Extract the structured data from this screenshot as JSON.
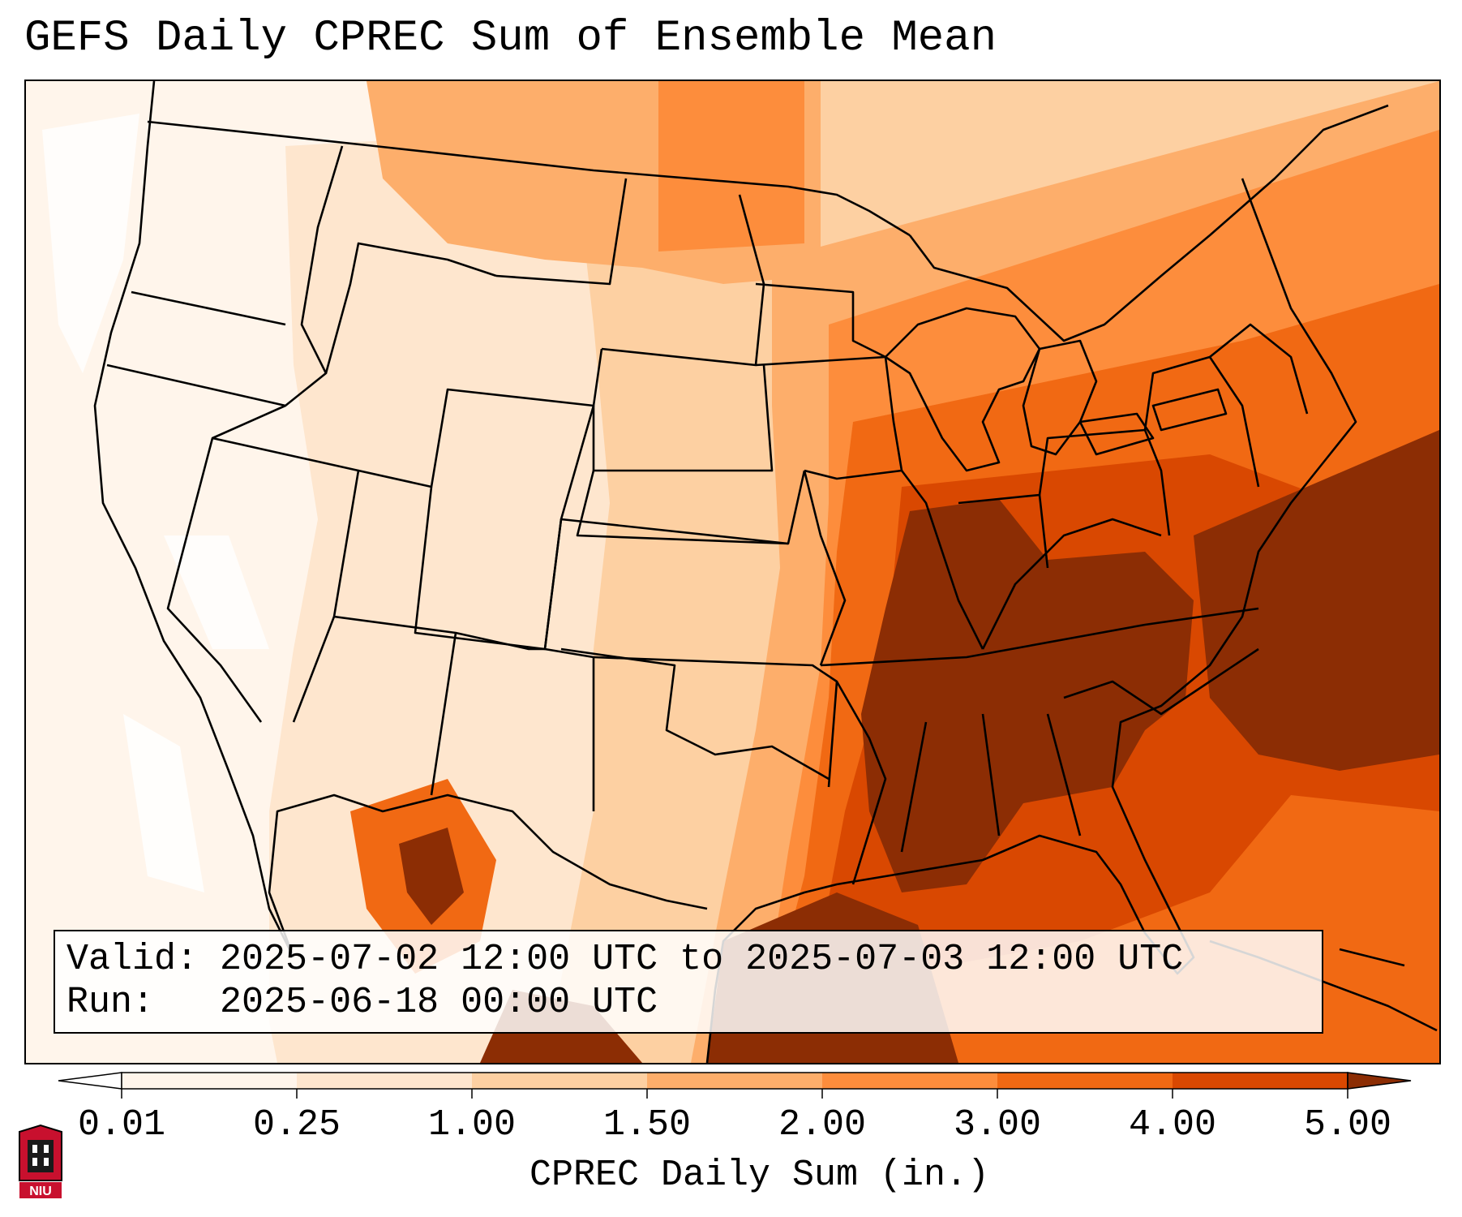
{
  "title": "GEFS Daily CPREC Sum of Ensemble Mean",
  "info": {
    "valid_label": "Valid:",
    "valid_value": "2025-07-02 12:00 UTC to 2025-07-03 12:00 UTC",
    "run_label": "Run:",
    "run_value": "2025-06-18 00:00 UTC"
  },
  "colorbar": {
    "label": "CPREC Daily Sum (in.)",
    "ticks": [
      "0.01",
      "0.25",
      "1.00",
      "1.50",
      "2.00",
      "3.00",
      "4.00",
      "5.00"
    ],
    "colors": [
      "#fff5eb",
      "#fee6ce",
      "#fdd0a2",
      "#fdae6b",
      "#fd8d3c",
      "#f16913",
      "#d94801",
      "#8c2d04"
    ],
    "under_color": "#ffffff",
    "over_color": "#7f2704",
    "extend": "both"
  },
  "map": {
    "projection": "Lambert conformal, CONUS",
    "field": "CPREC daily sum, ensemble mean",
    "max_region": "Southeast US, Tennessee Valley, Gulf Coast and western Atlantic",
    "min_region": "West Coast, Great Basin and Pacific"
  },
  "logo": {
    "text": "NIU"
  }
}
